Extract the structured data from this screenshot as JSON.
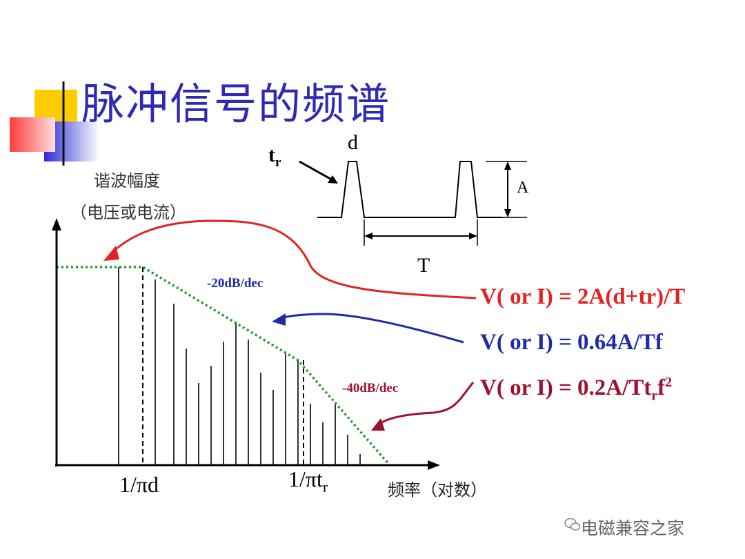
{
  "slide": {
    "title": "脉冲信号的频谱",
    "y_axis_label_line1": "谐波幅度",
    "y_axis_label_line2": "（电压或电流）",
    "x_axis_label": "频率（对数）",
    "x_markers": {
      "first_corner": "1/πd",
      "second_corner_main": "1/πt",
      "second_corner_sub": "r"
    },
    "slopes": {
      "first": "-20dB/dec",
      "second": "-40dB/dec"
    },
    "equations": {
      "flat": "V( or I) = 2A(d+tr)/T",
      "first_slope": "V( or I) = 0.64A/Tf",
      "second_slope_prefix": "V( or I) = 0.2A/Tt",
      "second_slope_sub": "r",
      "second_slope_suffix": "f",
      "second_slope_sup": "2"
    },
    "waveform": {
      "rise_label": "t",
      "rise_label_sub": "r",
      "width_label": "d",
      "amplitude_label": "A",
      "period_label": "T"
    },
    "watermark": "电磁兼容之家"
  },
  "colors": {
    "title": "#2f2ab3",
    "flat_equation": "#e32222",
    "first_slope_equation": "#1f2aa8",
    "second_slope_equation": "#a0102e",
    "envelope": "#1e9a2a",
    "axis": "#000000"
  }
}
